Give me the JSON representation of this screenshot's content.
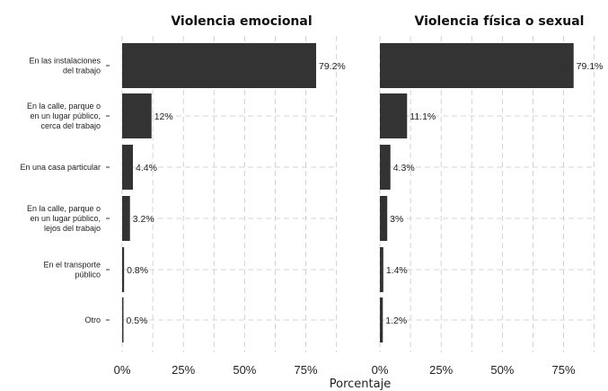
{
  "chart_data": {
    "type": "bar",
    "orientation": "horizontal",
    "categories": [
      [
        "En las instalaciones",
        "del trabajo"
      ],
      [
        "En la calle, parque o",
        "en un lugar público,",
        "cerca del trabajo"
      ],
      [
        "En una casa particular"
      ],
      [
        "En la calle, parque o",
        "en un lugar público,",
        "lejos del trabajo"
      ],
      [
        "En el transporte",
        "público"
      ],
      [
        "Otro"
      ]
    ],
    "panels": [
      {
        "title": "Violencia emocional",
        "values": [
          79.2,
          12,
          4.4,
          3.2,
          0.8,
          0.5
        ],
        "labels": [
          "79.2%",
          "12%",
          "4.4%",
          "3.2%",
          "0.8%",
          "0.5%"
        ]
      },
      {
        "title": "Violencia física o sexual",
        "values": [
          79.1,
          11.1,
          4.3,
          3,
          1.4,
          1.2
        ],
        "labels": [
          "79.1%",
          "11.1%",
          "4.3%",
          "3%",
          "1.4%",
          "1.2%"
        ]
      }
    ],
    "xlabel": "Porcentaje",
    "xlim": [
      0,
      88
    ],
    "xticks": [
      0,
      25,
      50,
      75
    ],
    "xtick_labels": [
      "0%",
      "25%",
      "50%",
      "75%"
    ],
    "grid": true,
    "bar_color": "#333333"
  }
}
